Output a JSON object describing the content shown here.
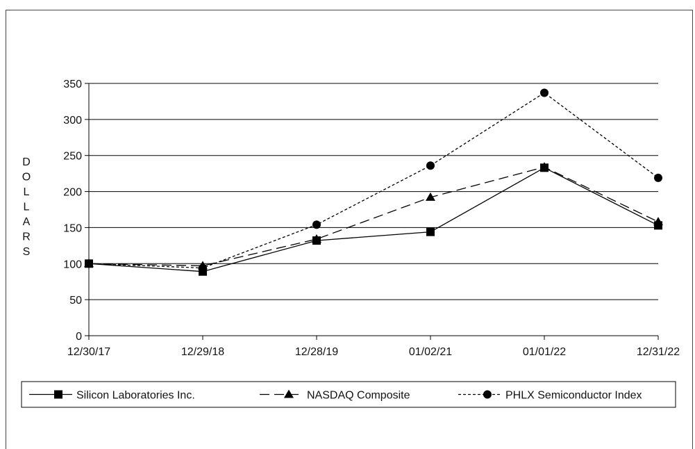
{
  "chart_data": {
    "type": "line",
    "categories": [
      "12/30/17",
      "12/29/18",
      "12/28/19",
      "01/02/21",
      "01/01/22",
      "12/31/22"
    ],
    "ylabel": "DOLLARS",
    "ylim": [
      0,
      350
    ],
    "yticks": [
      0,
      50,
      100,
      150,
      200,
      250,
      300,
      350
    ],
    "grid": true,
    "legend": "bottom",
    "series": [
      {
        "name": "Silicon Laboratories Inc.",
        "values": [
          100,
          89,
          132,
          144,
          233,
          153
        ],
        "marker": "square",
        "dash": "solid",
        "color": "#000000"
      },
      {
        "name": "NASDAQ Composite",
        "values": [
          100,
          97,
          134,
          192,
          234,
          158
        ],
        "marker": "triangle",
        "dash": "long-dash",
        "color": "#000000"
      },
      {
        "name": "PHLX Semiconductor Index",
        "values": [
          100,
          94,
          154,
          236,
          337,
          219
        ],
        "marker": "circle",
        "dash": "short-dash",
        "color": "#000000"
      }
    ]
  }
}
